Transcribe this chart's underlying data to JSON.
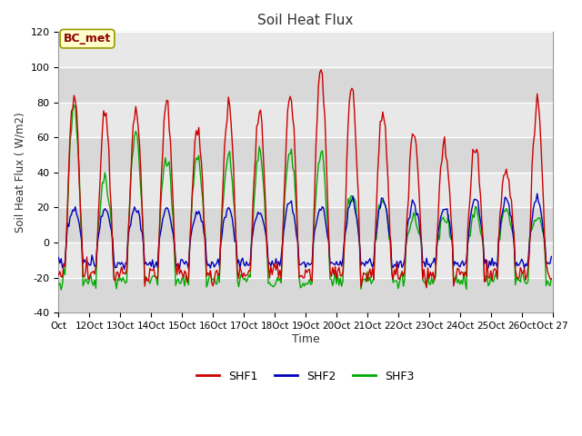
{
  "title": "Soil Heat Flux",
  "xlabel": "Time",
  "ylabel": "Soil Heat Flux ( W/m2)",
  "ylim": [
    -40,
    120
  ],
  "xlim": [
    0,
    384
  ],
  "annotation": "BC_met",
  "colors": {
    "SHF1": "#cc0000",
    "SHF2": "#0000bb",
    "SHF3": "#00aa00"
  },
  "legend_labels": [
    "SHF1",
    "SHF2",
    "SHF3"
  ],
  "tick_labels": [
    "Oct",
    "12Oct",
    "13Oct",
    "14Oct",
    "15Oct",
    "16Oct",
    "17Oct",
    "18Oct",
    "19Oct",
    "20Oct",
    "21Oct",
    "22Oct",
    "23Oct",
    "24Oct",
    "25Oct",
    "26Oct",
    "Oct 27"
  ],
  "plot_bg_color": "#e8e8e8",
  "linewidth": 1.0,
  "n_days": 16,
  "n_points_per_day": 24
}
